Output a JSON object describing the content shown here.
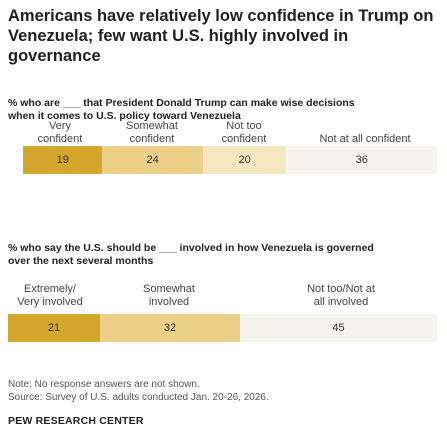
{
  "title": "Americans have relatively low confidence in Trump on Venezuela; few want U.S. highly involved in governance",
  "chart_data": [
    {
      "type": "bar",
      "subtitle_line1": "% who are ___ that President Donald Trump can make wise decisions",
      "subtitle_line2": "when it comes to U.S. policy toward Venezuela",
      "categories": [
        {
          "line1": "Very",
          "line2": "confident"
        },
        {
          "line1": "Somewhat",
          "line2": "confident"
        },
        {
          "line1": "Not too",
          "line2": "confident"
        },
        {
          "line1": "",
          "line2": "Not at all confident"
        }
      ],
      "values": [
        19,
        24,
        20,
        36
      ],
      "colors": [
        "#d4a72c",
        "#ecd08a",
        "#f6e7c0",
        "#f6f4ee"
      ]
    },
    {
      "type": "bar",
      "subtitle_line1": "% who say the U.S. should be ___ involved in how Venezuela is governed",
      "subtitle_line2": "over the next several months",
      "categories": [
        {
          "line1": "Extremely/",
          "line2": "Very involved"
        },
        {
          "line1": "Somewhat",
          "line2": "involved"
        },
        {
          "line1": "Not too/Not at",
          "line2": "all involved"
        }
      ],
      "values": [
        21,
        32,
        45
      ],
      "colors": [
        "#d4a72c",
        "#ecd08a",
        "#f6f4ee"
      ]
    }
  ],
  "note": "Note: No response answers are not shown.",
  "source": "Source: Survey of U.S. adults conducted Jan. 20-26, 2026.",
  "brand": "PEW RESEARCH CENTER"
}
